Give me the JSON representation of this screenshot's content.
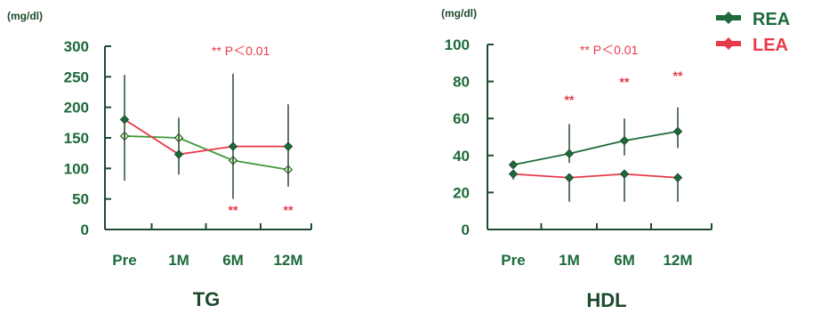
{
  "chart_data": [
    {
      "type": "line",
      "title": "TG",
      "ylabel": "(mg/dl)",
      "categories": [
        "Pre",
        "1M",
        "6M",
        "12M"
      ],
      "ylim": [
        0,
        300
      ],
      "yticks": [
        0,
        50,
        100,
        150,
        200,
        250,
        300
      ],
      "annotation": "** P＜0.01",
      "series": [
        {
          "name": "REA",
          "color": "#3f9a3a",
          "values": [
            153,
            150,
            113,
            98
          ],
          "error_upper": [
            null,
            null,
            null,
            null
          ],
          "error_lower": [
            null,
            null,
            null,
            null
          ]
        },
        {
          "name": "LEA",
          "color": "#e8394a",
          "values": [
            180,
            123,
            136,
            136
          ],
          "error_upper": [
            253,
            183,
            255,
            205
          ],
          "error_lower": [
            80,
            90,
            50,
            70
          ]
        }
      ],
      "significance": [
        "",
        "",
        "**",
        "**"
      ]
    },
    {
      "type": "line",
      "title": "HDL",
      "ylabel": "(mg/dl)",
      "categories": [
        "Pre",
        "1M",
        "6M",
        "12M"
      ],
      "ylim": [
        0,
        100
      ],
      "yticks": [
        0,
        20,
        40,
        60,
        80,
        100
      ],
      "annotation": "** P＜0.01",
      "series": [
        {
          "name": "REA",
          "color": "#1d6a3a",
          "values": [
            35,
            41,
            48,
            53
          ],
          "error_upper": [
            null,
            57,
            60,
            66
          ],
          "error_lower": [
            null,
            36,
            40,
            44
          ]
        },
        {
          "name": "LEA",
          "color": "#e8394a",
          "values": [
            30,
            28,
            30,
            28
          ],
          "error_upper": [
            null,
            null,
            null,
            null
          ],
          "error_lower": [
            27,
            15,
            15,
            15
          ]
        }
      ],
      "significance": [
        "",
        "**",
        "**",
        "**"
      ]
    }
  ],
  "legend": {
    "items": [
      {
        "label": "REA",
        "color": "#1d6a3a"
      },
      {
        "label": "LEA",
        "color": "#e8394a"
      }
    ]
  }
}
